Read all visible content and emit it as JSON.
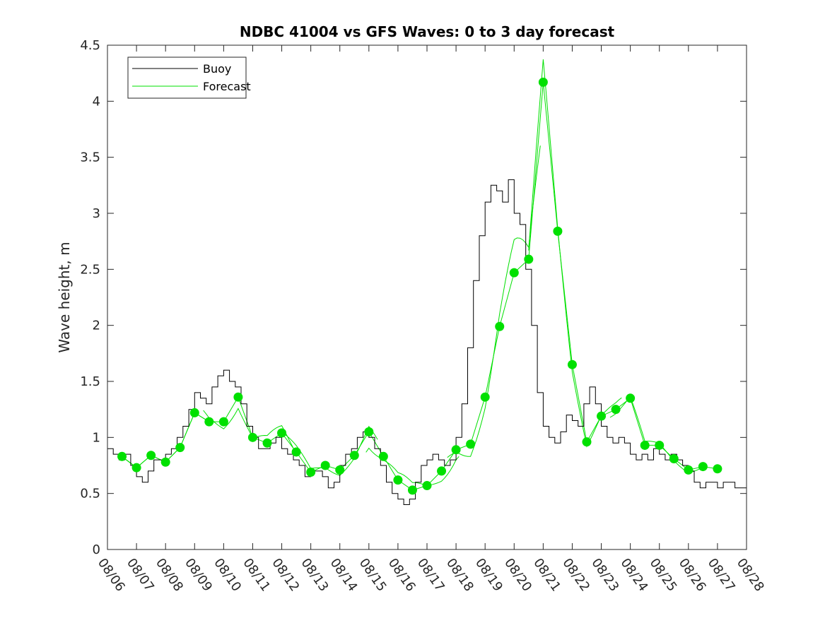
{
  "chart_data": {
    "type": "line",
    "title": "NDBC 41004 vs GFS Waves: 0 to 3 day forecast",
    "xlabel": "",
    "ylabel": "Wave height, m",
    "ylim": [
      0,
      4.5
    ],
    "yticks": [
      "0",
      "0.5",
      "1",
      "1.5",
      "2",
      "2.5",
      "3",
      "3.5",
      "4",
      "4.5"
    ],
    "xlim_days": [
      0,
      22
    ],
    "xticks": [
      "08/06",
      "08/07",
      "08/08",
      "08/09",
      "08/10",
      "08/11",
      "08/12",
      "08/13",
      "08/14",
      "08/15",
      "08/16",
      "08/17",
      "08/18",
      "08/19",
      "08/20",
      "08/21",
      "08/22",
      "08/23",
      "08/24",
      "08/25",
      "08/26",
      "08/27",
      "08/28"
    ],
    "legend": {
      "position": "top-left",
      "entries": [
        "Buoy",
        "Forecast"
      ]
    },
    "colors": {
      "buoy": "#000000",
      "forecast": "#00e000"
    },
    "series": [
      {
        "name": "Buoy",
        "x_days": [
          0.0,
          0.2,
          0.4,
          0.6,
          0.8,
          1.0,
          1.2,
          1.4,
          1.6,
          1.8,
          2.0,
          2.2,
          2.4,
          2.6,
          2.8,
          3.0,
          3.2,
          3.4,
          3.6,
          3.8,
          4.0,
          4.2,
          4.4,
          4.6,
          4.8,
          5.0,
          5.2,
          5.4,
          5.6,
          5.8,
          6.0,
          6.2,
          6.4,
          6.6,
          6.8,
          7.0,
          7.2,
          7.4,
          7.6,
          7.8,
          8.0,
          8.2,
          8.4,
          8.6,
          8.8,
          9.0,
          9.2,
          9.4,
          9.6,
          9.8,
          10.0,
          10.2,
          10.4,
          10.6,
          10.8,
          11.0,
          11.2,
          11.4,
          11.6,
          11.8,
          12.0,
          12.2,
          12.4,
          12.6,
          12.8,
          13.0,
          13.2,
          13.4,
          13.6,
          13.8,
          14.0,
          14.2,
          14.4,
          14.6,
          14.8,
          15.0,
          15.2,
          15.4,
          15.6,
          15.8,
          16.0,
          16.2,
          16.4,
          16.6,
          16.8,
          17.0,
          17.2,
          17.4,
          17.6,
          17.8,
          18.0,
          18.2,
          18.4,
          18.6,
          18.8,
          19.0,
          19.2,
          19.4,
          19.6,
          19.8,
          20.0,
          20.2,
          20.4,
          20.6,
          20.8,
          21.0,
          21.2,
          21.4,
          21.6,
          21.8,
          22.0
        ],
        "values": [
          0.9,
          0.85,
          0.8,
          0.85,
          0.75,
          0.65,
          0.6,
          0.7,
          0.8,
          0.8,
          0.85,
          0.9,
          1.0,
          1.1,
          1.25,
          1.4,
          1.35,
          1.3,
          1.45,
          1.55,
          1.6,
          1.5,
          1.45,
          1.3,
          1.1,
          1.0,
          0.9,
          0.9,
          0.95,
          1.0,
          0.9,
          0.85,
          0.8,
          0.75,
          0.65,
          0.7,
          0.7,
          0.65,
          0.55,
          0.6,
          0.75,
          0.85,
          0.9,
          1.0,
          1.05,
          1.0,
          0.9,
          0.75,
          0.6,
          0.5,
          0.45,
          0.4,
          0.45,
          0.6,
          0.75,
          0.8,
          0.85,
          0.8,
          0.75,
          0.8,
          1.0,
          1.3,
          1.8,
          2.4,
          2.8,
          3.1,
          3.25,
          3.2,
          3.1,
          3.3,
          3.0,
          2.9,
          2.5,
          2.0,
          1.4,
          1.1,
          1.0,
          0.95,
          1.05,
          1.2,
          1.15,
          1.1,
          1.3,
          1.45,
          1.3,
          1.1,
          1.0,
          0.95,
          1.0,
          0.95,
          0.85,
          0.8,
          0.85,
          0.8,
          0.9,
          0.85,
          0.8,
          0.85,
          0.8,
          0.75,
          0.7,
          0.6,
          0.55,
          0.6,
          0.6,
          0.55,
          0.6,
          0.6,
          0.55,
          0.55,
          0.6
        ]
      },
      {
        "name": "Forecast",
        "x_days": [
          0.5,
          1.0,
          1.5,
          2.0,
          2.5,
          3.0,
          3.5,
          4.0,
          4.5,
          5.0,
          5.5,
          6.0,
          6.5,
          7.0,
          7.5,
          8.0,
          8.5,
          9.0,
          9.5,
          10.0,
          10.5,
          11.0,
          11.5,
          12.0,
          12.5,
          13.0,
          13.5,
          14.0,
          14.5,
          15.0,
          15.5,
          16.0,
          16.5,
          17.0,
          17.5,
          18.0,
          18.5,
          19.0,
          19.5,
          20.0,
          20.5,
          21.0
        ],
        "values": [
          0.83,
          0.73,
          0.84,
          0.78,
          0.91,
          1.22,
          1.14,
          1.14,
          1.36,
          1.0,
          0.95,
          1.04,
          0.87,
          0.69,
          0.75,
          0.71,
          0.84,
          1.05,
          0.83,
          0.62,
          0.53,
          0.57,
          0.7,
          0.89,
          0.94,
          1.36,
          1.99,
          2.47,
          2.59,
          4.17,
          2.84,
          1.65,
          0.96,
          1.19,
          1.25,
          1.35,
          0.93,
          0.93,
          0.81,
          0.71,
          0.74,
          0.72
        ]
      }
    ]
  }
}
